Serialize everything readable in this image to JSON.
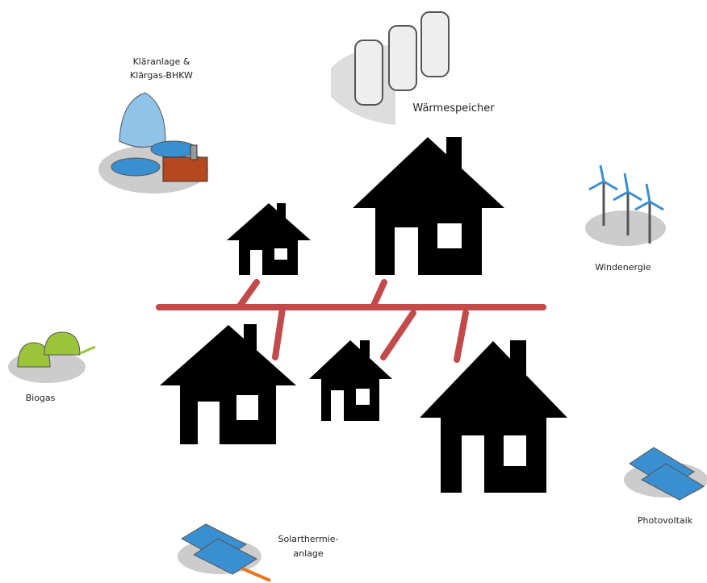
{
  "nodes": [
    {
      "label": [
        "Kläranlage &",
        "Klärgas-BHKW"
      ]
    },
    {
      "label": [
        "Wärmespeicher"
      ]
    },
    {
      "label": [
        "Windenergie"
      ]
    },
    {
      "label": [
        "Biogas"
      ]
    },
    {
      "label": [
        "Photovoltaik"
      ]
    },
    {
      "label": [
        "Solarthermie-",
        "anlage"
      ]
    }
  ]
}
